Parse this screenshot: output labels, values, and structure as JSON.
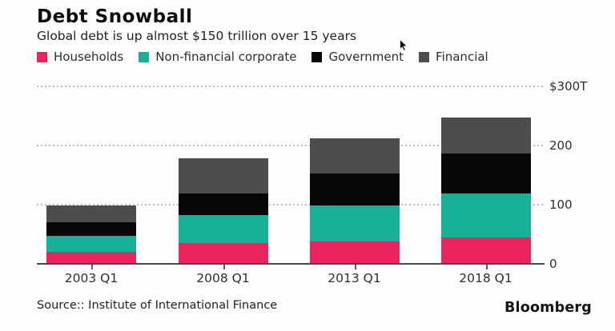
{
  "header": {
    "title": "Debt Snowball",
    "subtitle": "Global debt is up almost $150 trillion over 15 years"
  },
  "chart_data": {
    "type": "bar",
    "stacked": true,
    "unit": "USD trillions",
    "categories": [
      "2003 Q1",
      "2008 Q1",
      "2013 Q1",
      "2018 Q1"
    ],
    "series": [
      {
        "name": "Households",
        "color": "#e8235d",
        "values": [
          20,
          35,
          38,
          44
        ]
      },
      {
        "name": "Non-financial corporate",
        "color": "#17b295",
        "values": [
          27,
          47,
          61,
          75
        ]
      },
      {
        "name": "Government",
        "color": "#070707",
        "values": [
          23,
          37,
          54,
          68
        ]
      },
      {
        "name": "Financial",
        "color": "#4d4d4d",
        "values": [
          28,
          59,
          59,
          60
        ]
      }
    ],
    "totals": [
      98,
      178,
      212,
      247
    ],
    "ylim": [
      0,
      300
    ],
    "y_ticks": [
      {
        "value": 300,
        "label": "$300T"
      },
      {
        "value": 200,
        "label": "200"
      },
      {
        "value": 100,
        "label": "100"
      },
      {
        "value": 0,
        "label": "0"
      }
    ],
    "grid": "dotted horizontal",
    "legend_position": "top"
  },
  "footer": {
    "source": "Source:: Institute of International Finance",
    "brand": "Bloomberg"
  }
}
